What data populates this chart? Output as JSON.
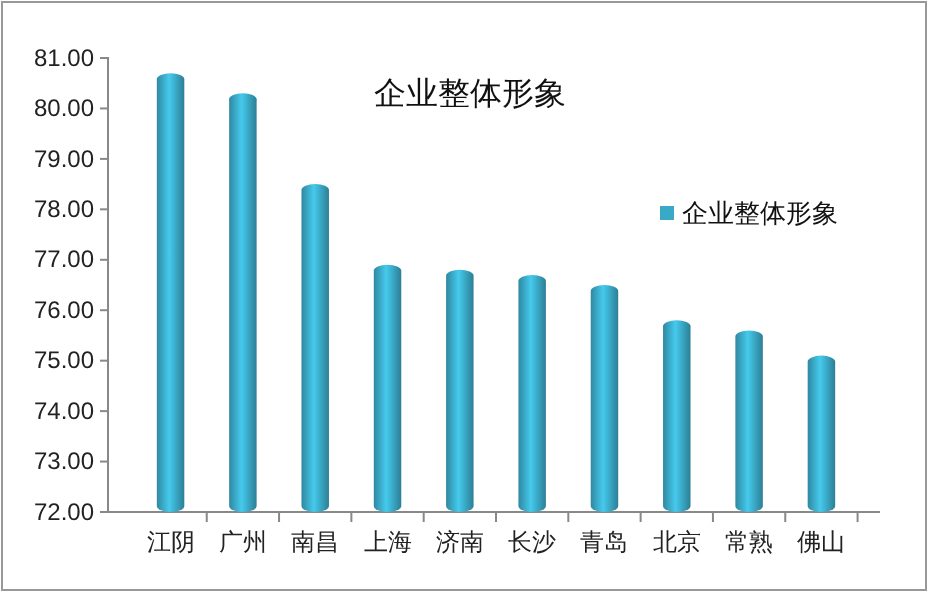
{
  "chart_data": {
    "type": "bar",
    "title": "企业整体形象",
    "categories": [
      "江阴",
      "广州",
      "南昌",
      "上海",
      "济南",
      "长沙",
      "青岛",
      "北京",
      "常熟",
      "佛山"
    ],
    "series": [
      {
        "name": "企业整体形象",
        "color": "#3aa9c6",
        "values": [
          80.7,
          80.3,
          78.5,
          76.9,
          76.8,
          76.7,
          76.5,
          75.8,
          75.6,
          75.1
        ]
      }
    ],
    "ylim": [
      72,
      81
    ],
    "yticks": [
      {
        "value": 72,
        "label": "72.00"
      },
      {
        "value": 73,
        "label": "73.00"
      },
      {
        "value": 74,
        "label": "74.00"
      },
      {
        "value": 75,
        "label": "75.00"
      },
      {
        "value": 76,
        "label": "76.00"
      },
      {
        "value": 77,
        "label": "77.00"
      },
      {
        "value": 78,
        "label": "78.00"
      },
      {
        "value": 79,
        "label": "79.00"
      },
      {
        "value": 80,
        "label": "80.00"
      },
      {
        "value": 81,
        "label": "81.00"
      }
    ],
    "legend": "right"
  }
}
